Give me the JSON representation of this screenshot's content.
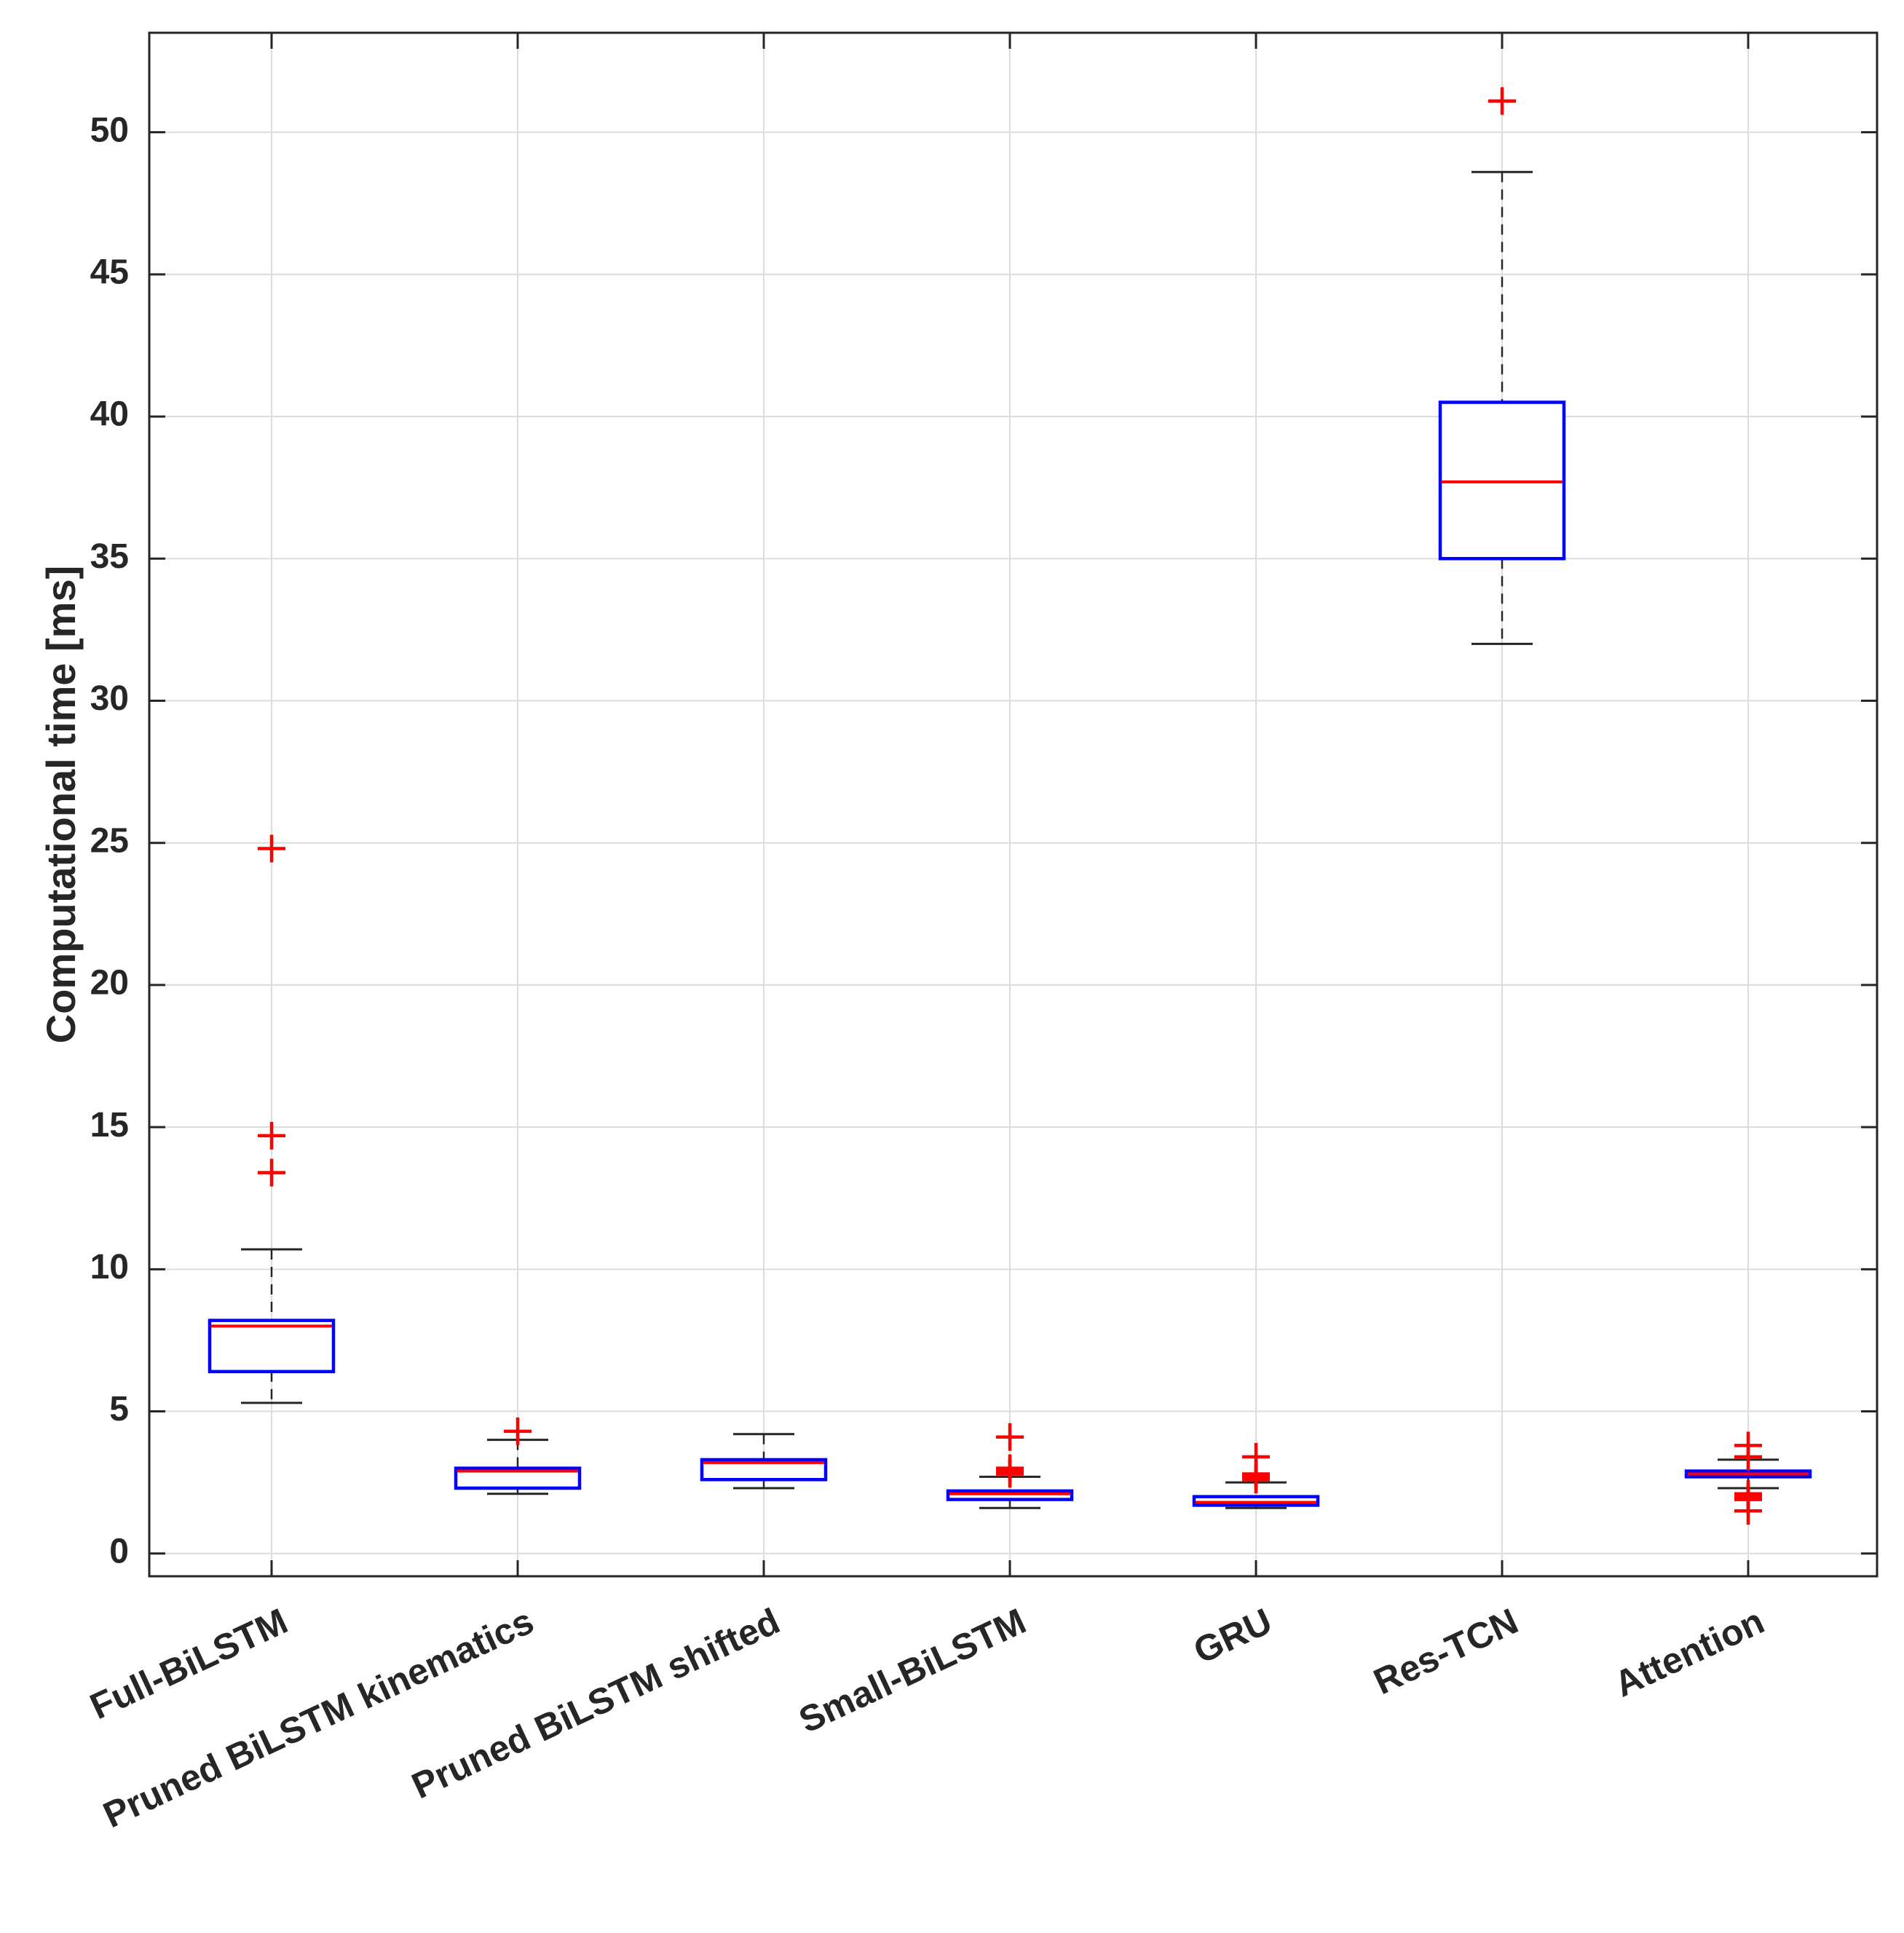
{
  "chart_data": {
    "type": "box",
    "title": "",
    "xlabel": "",
    "ylabel": "Computational time [ms]",
    "ylim": [
      -0.8,
      53.5
    ],
    "yticks": [
      0,
      5,
      10,
      15,
      20,
      25,
      30,
      35,
      40,
      45,
      50
    ],
    "grid": true,
    "colors": {
      "box": "#0000ff",
      "median": "#ff0000",
      "whisker": "#262626",
      "outlier": "#ff0000",
      "grid": "#dcdcdc",
      "axes": "#262626"
    },
    "categories": [
      "Full-BiLSTM",
      "Pruned BiLSTM kinematics",
      "Pruned BiLSTM shifted",
      "Small-BiLSTM",
      "GRU",
      "Res-TCN",
      "Attention"
    ],
    "boxes": [
      {
        "name": "Full-BiLSTM",
        "whisker_low": 5.3,
        "q1": 6.4,
        "median": 8.0,
        "q3": 8.2,
        "whisker_high": 10.7,
        "outliers": [
          13.4,
          14.7,
          24.8
        ]
      },
      {
        "name": "Pruned BiLSTM kinematics",
        "whisker_low": 2.1,
        "q1": 2.3,
        "median": 2.9,
        "q3": 3.0,
        "whisker_high": 4.0,
        "outliers": [
          4.3
        ]
      },
      {
        "name": "Pruned BiLSTM shifted",
        "whisker_low": 2.3,
        "q1": 2.6,
        "median": 3.2,
        "q3": 3.3,
        "whisker_high": 4.2,
        "outliers": []
      },
      {
        "name": "Small-BiLSTM",
        "whisker_low": 1.6,
        "q1": 1.9,
        "median": 2.1,
        "q3": 2.2,
        "whisker_high": 2.7,
        "outliers": [
          2.8,
          2.9,
          3.0,
          4.1
        ]
      },
      {
        "name": "GRU",
        "whisker_low": 1.6,
        "q1": 1.7,
        "median": 1.8,
        "q3": 2.0,
        "whisker_high": 2.5,
        "outliers": [
          2.6,
          2.7,
          2.8,
          3.4
        ]
      },
      {
        "name": "Res-TCN",
        "whisker_low": 32.0,
        "q1": 35.0,
        "median": 37.7,
        "q3": 40.5,
        "whisker_high": 48.6,
        "outliers": [
          51.1
        ]
      },
      {
        "name": "Attention",
        "whisker_low": 2.3,
        "q1": 2.7,
        "median": 2.8,
        "q3": 2.9,
        "whisker_high": 3.3,
        "outliers": [
          1.5,
          1.9,
          2.0,
          2.1,
          3.4,
          3.8
        ]
      }
    ]
  }
}
